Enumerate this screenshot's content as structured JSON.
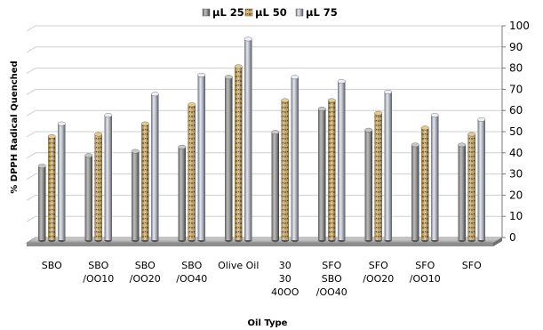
{
  "chart_data": {
    "type": "bar",
    "title": "",
    "xlabel": "Oil Type",
    "ylabel": "% DPPH Radical Quenched",
    "ylim": [
      0,
      100
    ],
    "yticks": [
      0,
      10,
      20,
      30,
      40,
      50,
      60,
      70,
      80,
      90,
      100
    ],
    "y_axis_side": "right",
    "grid": true,
    "legend": "top",
    "style": "3d-cylinder",
    "categories": [
      "SBO",
      "SBO /OO10",
      "SBO /OO20",
      "SBO /OO40",
      "Olive Oil",
      "30 30 40OO",
      "SFO SBO /OO40",
      "SFO /OO20",
      "SFO /OO10",
      "SFO"
    ],
    "category_label_lines": [
      [
        "SBO"
      ],
      [
        "SBO",
        "/OO10"
      ],
      [
        "SBO",
        "/OO20"
      ],
      [
        "SBO",
        "/OO40"
      ],
      [
        "Olive Oil"
      ],
      [
        "30",
        "30",
        "40OO"
      ],
      [
        "SFO",
        "SBO",
        "/OO40"
      ],
      [
        "SFO",
        "/OO20"
      ],
      [
        "SFO",
        "/OO10"
      ],
      [
        "SFO"
      ]
    ],
    "series": [
      {
        "name": "μL 25",
        "color": "#9a9a9a",
        "values": [
          35,
          40,
          42,
          44,
          77,
          51,
          62,
          52,
          45,
          45
        ]
      },
      {
        "name": "μL 50",
        "color": "#c9a45c",
        "values": [
          49,
          50,
          55,
          64,
          82,
          66,
          66,
          60,
          53,
          50
        ]
      },
      {
        "name": "μL 75",
        "color": "#b9bcc6",
        "values": [
          55,
          59,
          69,
          78,
          95,
          77,
          75,
          70,
          59,
          57
        ]
      }
    ]
  }
}
